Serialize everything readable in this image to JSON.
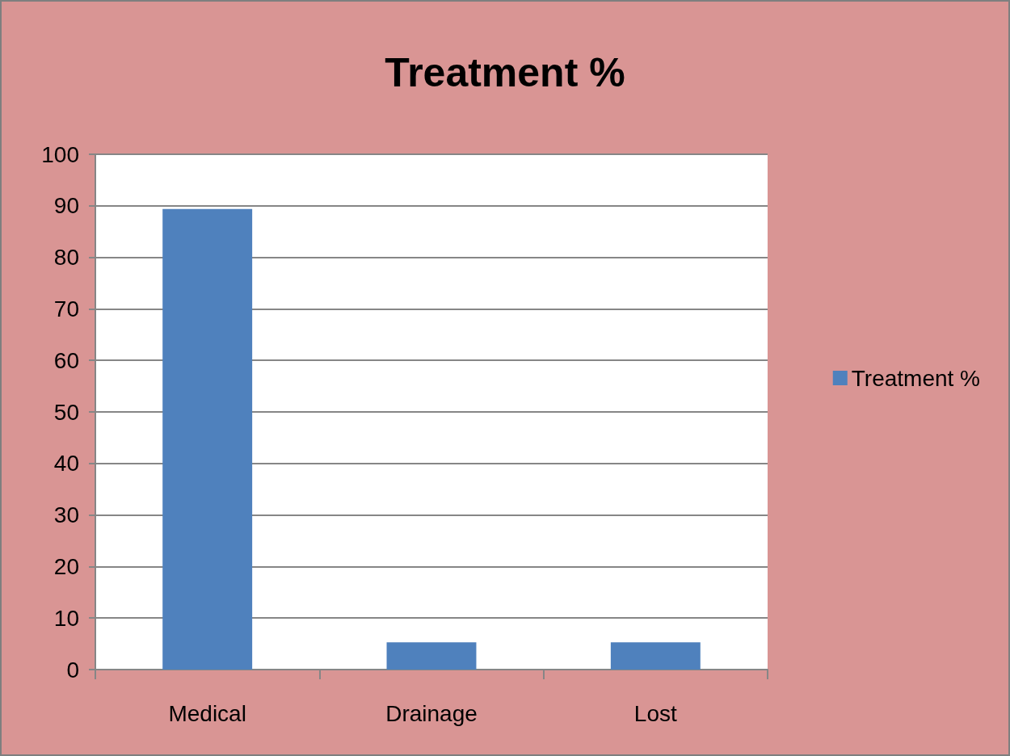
{
  "chart_data": {
    "type": "bar",
    "title": "Treatment %",
    "categories": [
      "Medical",
      "Drainage",
      "Lost"
    ],
    "series": [
      {
        "name": "Treatment %",
        "color": "#4f81bd",
        "values": [
          89.4,
          5.3,
          5.3
        ]
      }
    ],
    "ylim": [
      0,
      100
    ],
    "yticks": [
      0,
      10,
      20,
      30,
      40,
      50,
      60,
      70,
      80,
      90,
      100
    ],
    "grid": "y",
    "legend": "right"
  }
}
